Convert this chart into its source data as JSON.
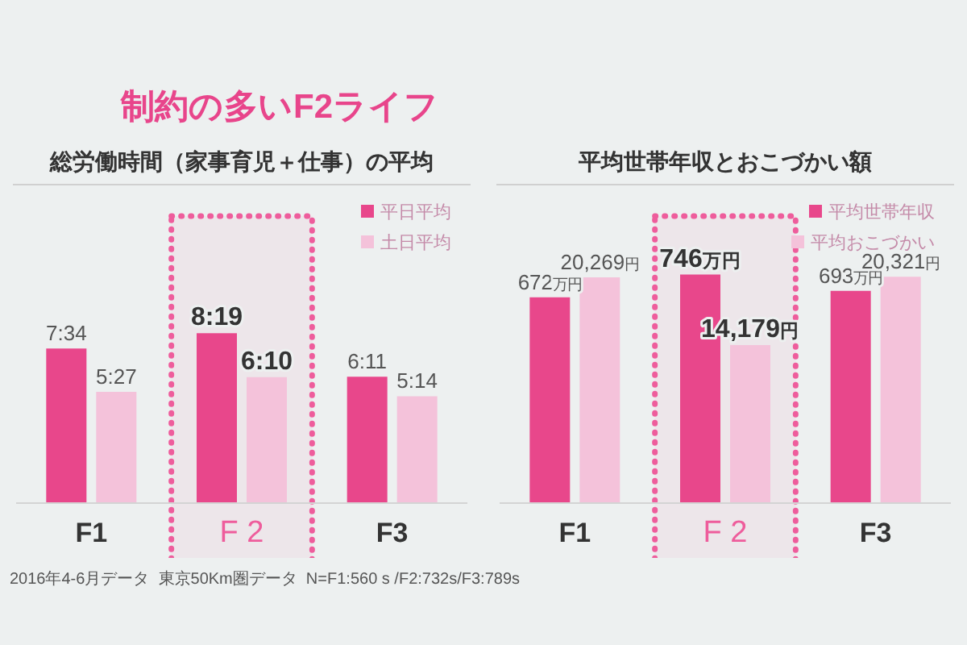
{
  "chart_data": [
    {
      "type": "bar",
      "title": "制約の多いF2ライフ",
      "subtitle": "総労働時間（家事育児＋仕事）の平均",
      "categories": [
        "F1",
        "F 2",
        "F3"
      ],
      "series": [
        {
          "name": "平日平均",
          "color": "#e8478b",
          "values": [
            7.567,
            8.317,
            6.183
          ],
          "value_labels": [
            "7:34",
            "8:19",
            "6:11"
          ]
        },
        {
          "name": "土日平均",
          "color": "#f4c2da",
          "values": [
            5.45,
            6.167,
            5.233
          ],
          "value_labels": [
            "5:27",
            "6:10",
            "5:14"
          ]
        }
      ],
      "tick_labels": "x",
      "legend": "top right",
      "bands": [
        {
          "axis": "x",
          "from": "F 2",
          "to": "F 2",
          "color": "#ee5d9c"
        }
      ],
      "annotations": [
        "2016年4-6月データ  東京50Km圏データ  N=F1:560 s /F2:732s/F3:789s"
      ]
    },
    {
      "type": "bar",
      "title": "平均世帯年収とおこづかい額",
      "categories": [
        "F1",
        "F 2",
        "F3"
      ],
      "series": [
        {
          "name": "平均世帯年収",
          "color": "#e8478b",
          "values": [
            672,
            746,
            693
          ],
          "value_labels": [
            "672万円",
            "746万円",
            "693万円"
          ]
        },
        {
          "name": "平均おこづかい",
          "color": "#f4c2da",
          "values": [
            20269,
            14179,
            20321
          ],
          "value_labels": [
            "20,269円",
            "14,179円",
            "20,321円"
          ],
          "axis": "y2"
        }
      ],
      "tick_labels": "x",
      "legend": "top right",
      "bands": [
        {
          "axis": "x",
          "from": "F 2",
          "to": "F 2",
          "color": "#ee5d9c"
        }
      ]
    }
  ]
}
